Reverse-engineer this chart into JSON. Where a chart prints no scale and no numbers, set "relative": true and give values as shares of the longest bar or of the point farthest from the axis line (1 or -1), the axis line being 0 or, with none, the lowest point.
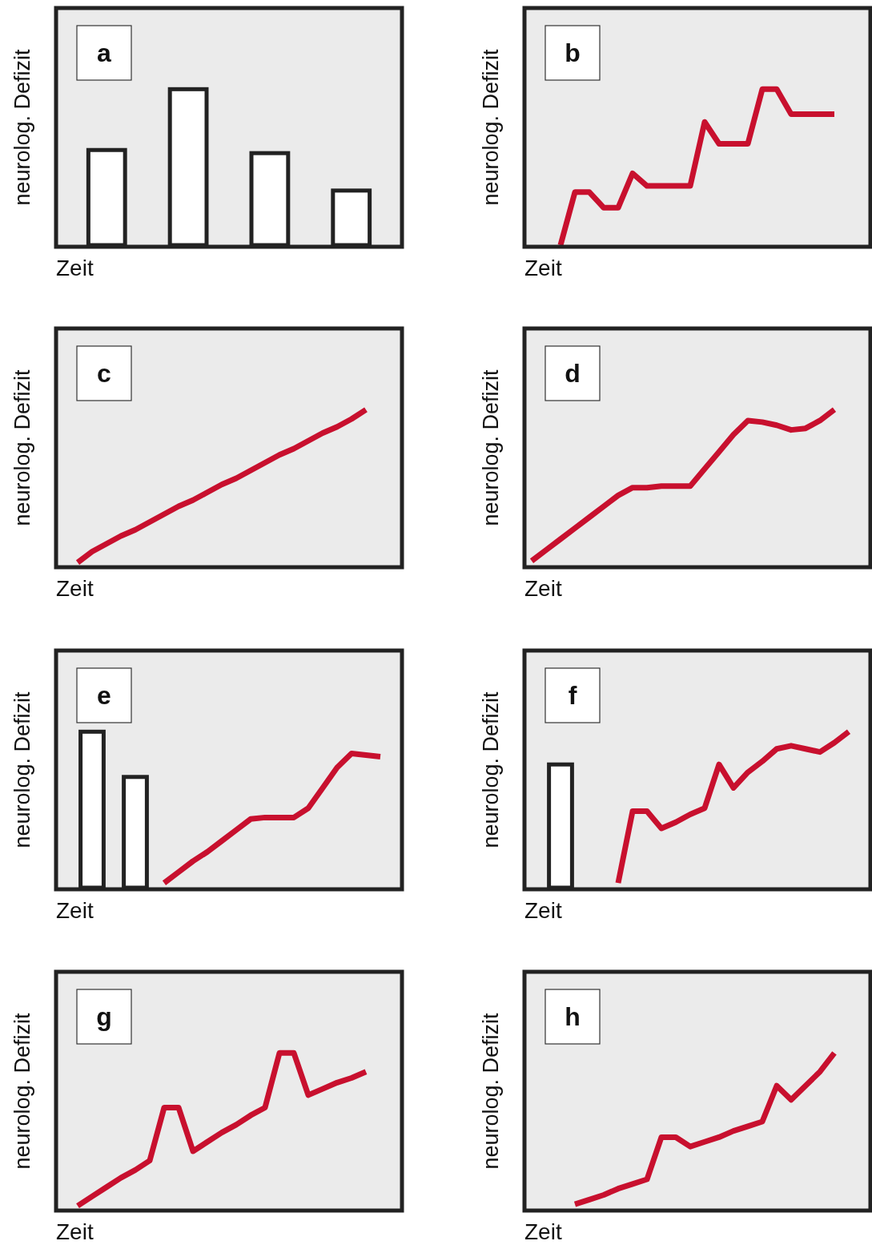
{
  "chart_data": [
    {
      "type": "bar",
      "title": "a",
      "xlabel": "Zeit",
      "ylabel": "neurolog. Defizit",
      "relative": true,
      "categories": [
        null,
        null,
        null,
        null
      ],
      "values": [
        0.61,
        1,
        0.59,
        0.35
      ],
      "color": "#ffffff"
    },
    {
      "type": "line",
      "title": "b",
      "xlabel": "Zeit",
      "ylabel": "neurolog. Defizit",
      "relative": true,
      "categories": [
        null,
        null,
        null,
        null,
        null,
        null,
        null,
        null,
        null,
        null,
        null,
        null,
        null,
        null,
        null,
        null,
        null,
        null,
        null,
        null,
        null,
        null,
        null,
        null
      ],
      "series": [
        {
          "color": "#c8102e",
          "values": [
            null,
            null,
            0,
            0.34,
            0.34,
            0.24,
            0.24,
            0.46,
            0.38,
            0.38,
            0.38,
            0.38,
            0.79,
            0.65,
            0.65,
            0.65,
            1,
            1,
            0.84,
            0.84,
            0.84,
            0.84,
            null,
            null
          ]
        }
      ]
    },
    {
      "type": "line",
      "title": "c",
      "xlabel": "Zeit",
      "ylabel": "neurolog. Defizit",
      "relative": true,
      "categories": [
        null,
        null,
        null,
        null,
        null,
        null,
        null,
        null,
        null,
        null,
        null,
        null,
        null,
        null,
        null,
        null,
        null,
        null,
        null,
        null,
        null,
        null,
        null,
        null
      ],
      "series": [
        {
          "color": "#c8102e",
          "values": [
            null,
            0.02,
            0.09,
            0.14,
            0.19,
            0.23,
            0.28,
            0.33,
            0.38,
            0.42,
            0.47,
            0.52,
            0.56,
            0.61,
            0.66,
            0.71,
            0.75,
            0.8,
            0.85,
            0.89,
            0.94,
            1,
            null,
            null
          ]
        }
      ]
    },
    {
      "type": "line",
      "title": "d",
      "xlabel": "Zeit",
      "ylabel": "neurolog. Defizit",
      "relative": true,
      "categories": [
        null,
        null,
        null,
        null,
        null,
        null,
        null,
        null,
        null,
        null,
        null,
        null,
        null,
        null,
        null,
        null,
        null,
        null,
        null,
        null,
        null,
        null,
        null,
        null
      ],
      "series": [
        {
          "color": "#c8102e",
          "values": [
            0.03,
            0.1,
            0.17,
            0.24,
            0.31,
            0.38,
            0.45,
            0.5,
            0.5,
            0.51,
            0.51,
            0.51,
            0.62,
            0.73,
            0.84,
            0.93,
            0.92,
            0.9,
            0.87,
            0.88,
            0.93,
            1,
            null,
            null
          ]
        }
      ]
    },
    {
      "type": "line",
      "title": "e",
      "xlabel": "Zeit",
      "ylabel": "neurolog. Defizit",
      "relative": true,
      "categories": [
        null,
        null,
        null,
        null,
        null,
        null,
        null,
        null,
        null,
        null,
        null,
        null,
        null,
        null,
        null,
        null,
        null,
        null,
        null,
        null,
        null,
        null,
        null,
        null
      ],
      "series": [
        {
          "type": "bar",
          "color": "#ffffff",
          "values": [
            null,
            null,
            1,
            null,
            null,
            0.71,
            null,
            null,
            null,
            null,
            null,
            null,
            null,
            null,
            null,
            null,
            null,
            null,
            null,
            null,
            null,
            null,
            null,
            null
          ]
        },
        {
          "color": "#c8102e",
          "values": [
            null,
            null,
            null,
            null,
            null,
            null,
            null,
            0.03,
            0.1,
            0.17,
            0.23,
            0.3,
            0.37,
            0.44,
            0.45,
            0.45,
            0.45,
            0.51,
            0.64,
            0.77,
            0.86,
            0.85,
            0.84,
            null
          ]
        }
      ]
    },
    {
      "type": "line",
      "title": "f",
      "xlabel": "Zeit",
      "ylabel": "neurolog. Defizit",
      "relative": true,
      "categories": [
        null,
        null,
        null,
        null,
        null,
        null,
        null,
        null,
        null,
        null,
        null,
        null,
        null,
        null,
        null,
        null,
        null,
        null,
        null,
        null,
        null,
        null,
        null,
        null
      ],
      "series": [
        {
          "type": "bar",
          "color": "#ffffff",
          "values": [
            null,
            null,
            0.79,
            null,
            null,
            null,
            null,
            null,
            null,
            null,
            null,
            null,
            null,
            null,
            null,
            null,
            null,
            null,
            null,
            null,
            null,
            null,
            null,
            null
          ]
        },
        {
          "color": "#c8102e",
          "values": [
            null,
            null,
            null,
            null,
            null,
            null,
            0.03,
            0.49,
            0.49,
            0.38,
            0.42,
            0.47,
            0.51,
            0.79,
            0.64,
            0.74,
            0.81,
            0.89,
            0.91,
            0.89,
            0.87,
            0.93,
            1,
            null
          ]
        }
      ]
    },
    {
      "type": "line",
      "title": "g",
      "xlabel": "Zeit",
      "ylabel": "neurolog. Defizit",
      "relative": true,
      "categories": [
        null,
        null,
        null,
        null,
        null,
        null,
        null,
        null,
        null,
        null,
        null,
        null,
        null,
        null,
        null,
        null,
        null,
        null,
        null,
        null,
        null,
        null,
        null,
        null
      ],
      "series": [
        {
          "color": "#c8102e",
          "values": [
            null,
            0.02,
            0.08,
            0.14,
            0.2,
            0.25,
            0.31,
            0.65,
            0.65,
            0.37,
            0.43,
            0.49,
            0.54,
            0.6,
            0.65,
            1,
            1,
            0.73,
            0.77,
            0.81,
            0.84,
            0.88,
            null,
            null
          ]
        }
      ]
    },
    {
      "type": "line",
      "title": "h",
      "xlabel": "Zeit",
      "ylabel": "neurolog. Defizit",
      "relative": true,
      "categories": [
        null,
        null,
        null,
        null,
        null,
        null,
        null,
        null,
        null,
        null,
        null,
        null,
        null,
        null,
        null,
        null,
        null,
        null,
        null,
        null,
        null,
        null,
        null,
        null
      ],
      "series": [
        {
          "color": "#c8102e",
          "values": [
            null,
            null,
            null,
            0.03,
            0.06,
            0.09,
            0.13,
            0.16,
            0.19,
            0.46,
            0.46,
            0.4,
            0.43,
            0.46,
            0.5,
            0.53,
            0.56,
            0.79,
            0.7,
            0.79,
            0.88,
            1,
            null,
            null
          ]
        }
      ]
    }
  ]
}
